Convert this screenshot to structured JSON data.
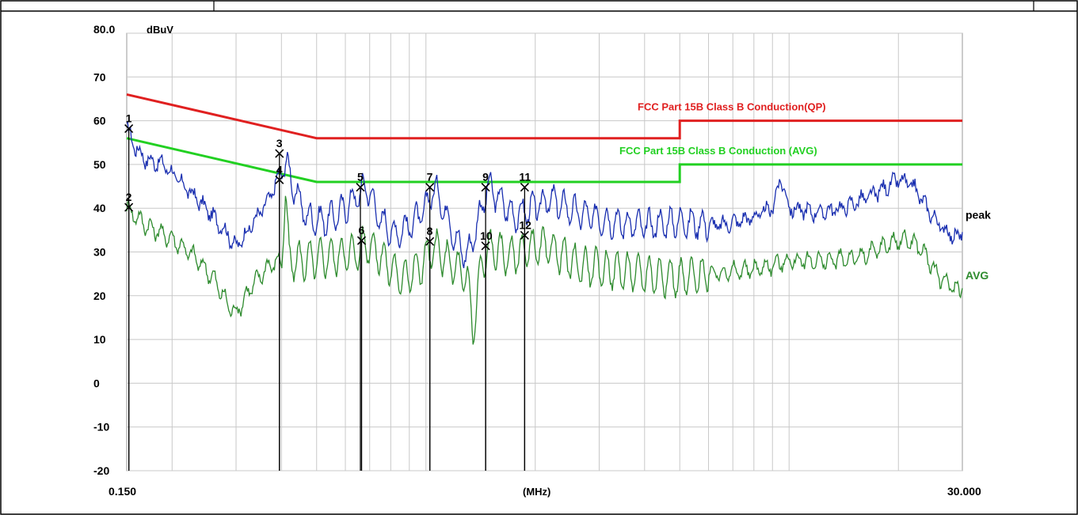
{
  "chart_data": {
    "type": "line",
    "xlabel": "(MHz)",
    "ylabel": "dBuV",
    "x_scale": "log",
    "xlim": [
      0.15,
      30.0
    ],
    "ylim": [
      -20,
      80
    ],
    "x_tick_labels": [
      "0.150",
      "30.000"
    ],
    "y_ticks": [
      "80.0",
      "70",
      "60",
      "50",
      "40",
      "30",
      "20",
      "10",
      "0",
      "-10",
      "-20"
    ],
    "grid": true,
    "colors": {
      "qp_limit": "#e02020",
      "avg_limit": "#22d022",
      "peak": "#1a2fb0",
      "avg": "#2e8b2e",
      "marker": "#000000"
    },
    "limit_lines": [
      {
        "name": "FCC Part 15B Class B Conduction(QP)",
        "color": "#e02020",
        "points": [
          [
            0.15,
            66
          ],
          [
            0.5,
            56
          ],
          [
            5.0,
            56
          ],
          [
            5.0,
            60
          ],
          [
            30.0,
            60
          ]
        ]
      },
      {
        "name": "FCC Part 15B Class B Conduction (AVG)",
        "color": "#22d022",
        "points": [
          [
            0.15,
            56
          ],
          [
            0.5,
            46
          ],
          [
            5.0,
            46
          ],
          [
            5.0,
            50
          ],
          [
            30.0,
            50
          ]
        ]
      }
    ],
    "series": [
      {
        "name": "peak",
        "color": "#1a2fb0",
        "anchors": [
          [
            0.15,
            58.5
          ],
          [
            0.158,
            54
          ],
          [
            0.17,
            51
          ],
          [
            0.19,
            50
          ],
          [
            0.21,
            46
          ],
          [
            0.235,
            42
          ],
          [
            0.26,
            38
          ],
          [
            0.285,
            34
          ],
          [
            0.3,
            31
          ],
          [
            0.33,
            36
          ],
          [
            0.37,
            42
          ],
          [
            0.41,
            51
          ],
          [
            0.43,
            45
          ],
          [
            0.47,
            38
          ],
          [
            0.52,
            37
          ],
          [
            0.58,
            39
          ],
          [
            0.65,
            43
          ],
          [
            0.69,
            45
          ],
          [
            0.74,
            38
          ],
          [
            0.82,
            34
          ],
          [
            0.9,
            36
          ],
          [
            1.0,
            40
          ],
          [
            1.05,
            45
          ],
          [
            1.12,
            40
          ],
          [
            1.22,
            32
          ],
          [
            1.3,
            29
          ],
          [
            1.38,
            36
          ],
          [
            1.48,
            45
          ],
          [
            1.6,
            42
          ],
          [
            1.75,
            38
          ],
          [
            1.95,
            40
          ],
          [
            2.2,
            42
          ],
          [
            2.6,
            39
          ],
          [
            3.2,
            37
          ],
          [
            4.0,
            36
          ],
          [
            5.0,
            37
          ],
          [
            6.5,
            36
          ],
          [
            8.0,
            38
          ],
          [
            9.0,
            40
          ],
          [
            9.5,
            47
          ],
          [
            10.0,
            40
          ],
          [
            12.0,
            39
          ],
          [
            14.0,
            40
          ],
          [
            17.0,
            43
          ],
          [
            20.0,
            46.5
          ],
          [
            22.0,
            45
          ],
          [
            24.0,
            40
          ],
          [
            26.0,
            36
          ],
          [
            28.0,
            34
          ],
          [
            29.5,
            33
          ],
          [
            30.0,
            36
          ]
        ]
      },
      {
        "name": "AVG",
        "color": "#2e8b2e",
        "anchors": [
          [
            0.15,
            40
          ],
          [
            0.16,
            38
          ],
          [
            0.17,
            36
          ],
          [
            0.2,
            33
          ],
          [
            0.23,
            29
          ],
          [
            0.26,
            24
          ],
          [
            0.285,
            18
          ],
          [
            0.3,
            16
          ],
          [
            0.33,
            22
          ],
          [
            0.37,
            27
          ],
          [
            0.4,
            28
          ],
          [
            0.41,
            44
          ],
          [
            0.42,
            28
          ],
          [
            0.47,
            28
          ],
          [
            0.55,
            29
          ],
          [
            0.65,
            30
          ],
          [
            0.69,
            32
          ],
          [
            0.75,
            29
          ],
          [
            0.85,
            24
          ],
          [
            0.95,
            26
          ],
          [
            1.05,
            31
          ],
          [
            1.15,
            28
          ],
          [
            1.3,
            24
          ],
          [
            1.35,
            12
          ],
          [
            1.42,
            27
          ],
          [
            1.5,
            31
          ],
          [
            1.7,
            29
          ],
          [
            1.95,
            31
          ],
          [
            2.2,
            31
          ],
          [
            2.6,
            27
          ],
          [
            3.2,
            26
          ],
          [
            4.0,
            25
          ],
          [
            5.0,
            24
          ],
          [
            6.0,
            25
          ],
          [
            8.0,
            26
          ],
          [
            10.0,
            28
          ],
          [
            13.0,
            28
          ],
          [
            16.0,
            29
          ],
          [
            19.0,
            32
          ],
          [
            21.0,
            33
          ],
          [
            23.0,
            31
          ],
          [
            26.0,
            24
          ],
          [
            29.5,
            21
          ],
          [
            30.0,
            23
          ]
        ]
      }
    ],
    "markers": [
      {
        "label": "1",
        "x": 0.152,
        "y": 58.2
      },
      {
        "label": "2",
        "x": 0.152,
        "y": 40.2
      },
      {
        "label": "3",
        "x": 0.395,
        "y": 52.5
      },
      {
        "label": "4",
        "x": 0.395,
        "y": 46.5
      },
      {
        "label": "5",
        "x": 0.66,
        "y": 44.8
      },
      {
        "label": "6",
        "x": 0.665,
        "y": 32.6
      },
      {
        "label": "7",
        "x": 1.025,
        "y": 44.8
      },
      {
        "label": "8",
        "x": 1.025,
        "y": 32.4
      },
      {
        "label": "9",
        "x": 1.46,
        "y": 44.8
      },
      {
        "label": "10",
        "x": 1.46,
        "y": 31.4
      },
      {
        "label": "11",
        "x": 1.87,
        "y": 44.8
      },
      {
        "label": "12",
        "x": 1.87,
        "y": 33.8
      }
    ]
  }
}
